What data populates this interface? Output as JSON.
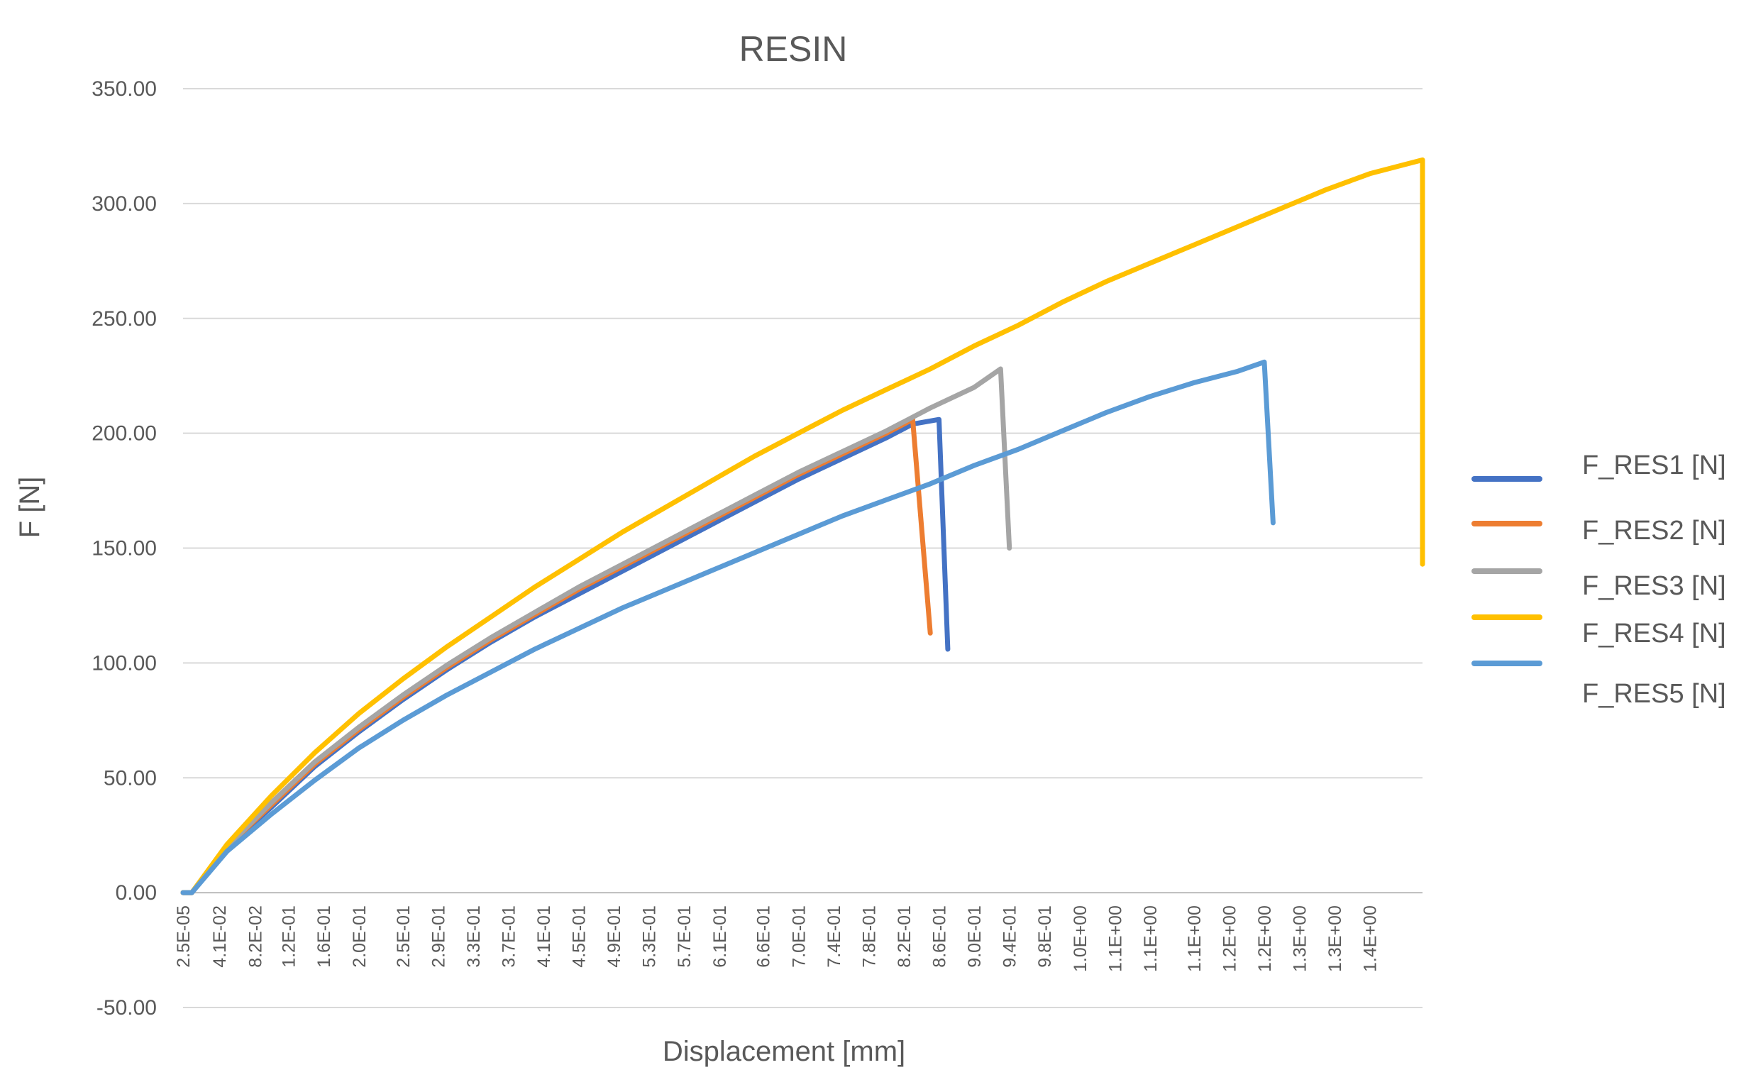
{
  "chart_data": {
    "type": "line",
    "title": "RESIN",
    "xlabel": "Displacement [mm]",
    "ylabel": "F [N]",
    "ylim": [
      -50,
      350
    ],
    "xlim": [
      0,
      1.41
    ],
    "y_ticks": [
      "-50.00",
      "0.00",
      "50.00",
      "100.00",
      "150.00",
      "200.00",
      "250.00",
      "300.00",
      "350.00"
    ],
    "x_tick_labels": [
      "2.5E-05",
      "4.1E-02",
      "8.2E-02",
      "1.2E-01",
      "1.6E-01",
      "2.0E-01",
      "2.5E-01",
      "2.9E-01",
      "3.3E-01",
      "3.7E-01",
      "4.1E-01",
      "4.5E-01",
      "4.9E-01",
      "5.3E-01",
      "5.7E-01",
      "6.1E-01",
      "6.6E-01",
      "7.0E-01",
      "7.4E-01",
      "7.8E-01",
      "8.2E-01",
      "8.6E-01",
      "9.0E-01",
      "9.4E-01",
      "9.8E-01",
      "1.0E+00",
      "1.1E+00",
      "1.1E+00",
      "1.1E+00",
      "1.2E+00",
      "1.2E+00",
      "1.3E+00",
      "1.3E+00",
      "1.4E+00"
    ],
    "x_tick_values": [
      2.5e-05,
      0.041,
      0.082,
      0.12,
      0.16,
      0.2,
      0.25,
      0.29,
      0.33,
      0.37,
      0.41,
      0.45,
      0.49,
      0.53,
      0.57,
      0.61,
      0.66,
      0.7,
      0.74,
      0.78,
      0.82,
      0.86,
      0.9,
      0.94,
      0.98,
      1.02,
      1.06,
      1.1,
      1.15,
      1.19,
      1.23,
      1.27,
      1.31,
      1.35
    ],
    "grid": true,
    "legend_position": "right",
    "series": [
      {
        "name": "F_RES1 [N]",
        "color": "#4472c4",
        "x": [
          0,
          0.01,
          0.05,
          0.1,
          0.15,
          0.2,
          0.25,
          0.3,
          0.35,
          0.4,
          0.45,
          0.5,
          0.55,
          0.6,
          0.65,
          0.7,
          0.75,
          0.8,
          0.83,
          0.86,
          0.87
        ],
        "y": [
          0,
          0,
          20,
          37,
          55,
          70,
          84,
          97,
          109,
          120,
          130,
          140,
          150,
          160,
          170,
          180,
          189,
          198,
          204,
          206,
          106
        ]
      },
      {
        "name": "F_RES2 [N]",
        "color": "#ed7d31",
        "x": [
          0,
          0.01,
          0.05,
          0.1,
          0.15,
          0.2,
          0.25,
          0.3,
          0.35,
          0.4,
          0.45,
          0.5,
          0.55,
          0.6,
          0.65,
          0.7,
          0.75,
          0.8,
          0.83,
          0.85
        ],
        "y": [
          0,
          0,
          20,
          38,
          56,
          71,
          85,
          98,
          110,
          121,
          132,
          142,
          152,
          162,
          172,
          182,
          191,
          200,
          206,
          113
        ]
      },
      {
        "name": "F_RES3 [N]",
        "color": "#a5a5a5",
        "x": [
          0,
          0.01,
          0.05,
          0.1,
          0.15,
          0.2,
          0.25,
          0.3,
          0.35,
          0.4,
          0.45,
          0.5,
          0.55,
          0.6,
          0.65,
          0.7,
          0.75,
          0.8,
          0.85,
          0.9,
          0.93,
          0.94
        ],
        "y": [
          0,
          0,
          20,
          39,
          57,
          72,
          86,
          99,
          111,
          122,
          133,
          143,
          153,
          163,
          173,
          183,
          192,
          201,
          211,
          220,
          228,
          150
        ]
      },
      {
        "name": "F_RES4 [N]",
        "color": "#ffc000",
        "x": [
          0,
          0.01,
          0.05,
          0.1,
          0.15,
          0.2,
          0.25,
          0.3,
          0.35,
          0.4,
          0.45,
          0.5,
          0.55,
          0.6,
          0.65,
          0.7,
          0.75,
          0.8,
          0.85,
          0.9,
          0.95,
          1.0,
          1.05,
          1.1,
          1.15,
          1.2,
          1.25,
          1.3,
          1.35,
          1.41,
          1.41
        ],
        "y": [
          0,
          0,
          21,
          42,
          61,
          78,
          93,
          107,
          120,
          133,
          145,
          157,
          168,
          179,
          190,
          200,
          210,
          219,
          228,
          238,
          247,
          257,
          266,
          274,
          282,
          290,
          298,
          306,
          313,
          319,
          143
        ]
      },
      {
        "name": "F_RES5 [N]",
        "color": "#5b9bd5",
        "x": [
          0,
          0.01,
          0.05,
          0.1,
          0.15,
          0.2,
          0.25,
          0.3,
          0.35,
          0.4,
          0.45,
          0.5,
          0.55,
          0.6,
          0.65,
          0.7,
          0.75,
          0.8,
          0.85,
          0.9,
          0.95,
          1.0,
          1.05,
          1.1,
          1.15,
          1.2,
          1.23,
          1.24
        ],
        "y": [
          0,
          0,
          18,
          34,
          49,
          63,
          75,
          86,
          96,
          106,
          115,
          124,
          132,
          140,
          148,
          156,
          164,
          171,
          178,
          186,
          193,
          201,
          209,
          216,
          222,
          227,
          231,
          161
        ]
      }
    ]
  }
}
